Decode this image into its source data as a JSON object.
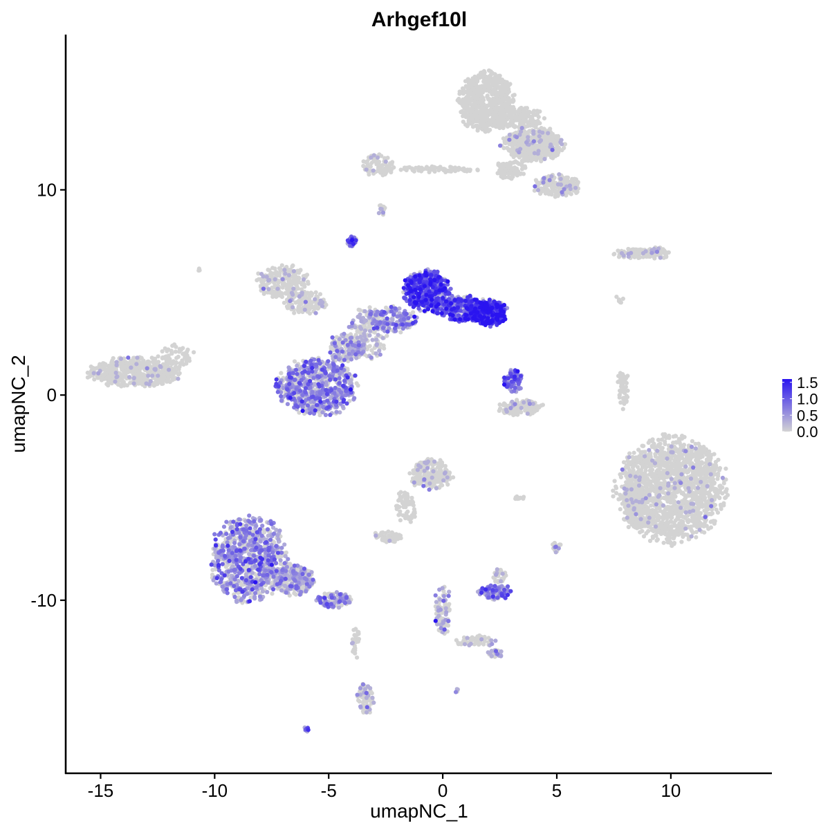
{
  "chart_data": {
    "type": "scatter",
    "title": "Arhgef10l",
    "xlabel": "umapNC_1",
    "ylabel": "umapNC_2",
    "xlim": [
      -16.5,
      14.4
    ],
    "ylim": [
      -18.4,
      17.5
    ],
    "x_ticks": [
      -15,
      -10,
      -5,
      0,
      5,
      10
    ],
    "y_ticks": [
      10,
      0,
      -10
    ],
    "x_tick_labels": [
      "-15",
      "-10",
      "-5",
      "0",
      "5",
      "10"
    ],
    "y_tick_labels": [
      "10",
      "0",
      "-10"
    ],
    "grid": false,
    "legend": {
      "placement": "right",
      "type": "colorbar",
      "min": 0.0,
      "max": 1.6,
      "ticks": [
        0.0,
        0.5,
        1.0,
        1.5
      ],
      "tick_labels": [
        "0.0",
        "0.5",
        "1.0",
        "1.5"
      ],
      "low_color": "#d3d3d3",
      "high_color": "#2a14f0"
    },
    "clusters": [
      {
        "x": -13.5,
        "y": 1.1,
        "rx": 2.2,
        "ry": 0.8,
        "n": 500,
        "expr": 0.03
      },
      {
        "x": -11.7,
        "y": 1.9,
        "rx": 0.9,
        "ry": 0.6,
        "n": 60,
        "expr": 0.0
      },
      {
        "x": -7.0,
        "y": 5.5,
        "rx": 1.3,
        "ry": 0.9,
        "n": 220,
        "expr": 0.05
      },
      {
        "x": -6.0,
        "y": 4.5,
        "rx": 1.0,
        "ry": 0.6,
        "n": 120,
        "expr": 0.1
      },
      {
        "x": -4.0,
        "y": 7.5,
        "rx": 0.25,
        "ry": 0.3,
        "n": 30,
        "expr": 0.8
      },
      {
        "x": -3.3,
        "y": 3.0,
        "rx": 0.9,
        "ry": 1.4,
        "n": 180,
        "expr": 0.3
      },
      {
        "x": -2.2,
        "y": 3.7,
        "rx": 1.2,
        "ry": 0.7,
        "n": 160,
        "expr": 0.55
      },
      {
        "x": -5.5,
        "y": 0.4,
        "rx": 1.9,
        "ry": 1.5,
        "n": 650,
        "expr": 0.6
      },
      {
        "x": -4.3,
        "y": 2.3,
        "rx": 0.8,
        "ry": 0.8,
        "n": 150,
        "expr": 0.4
      },
      {
        "x": -0.7,
        "y": 5.1,
        "rx": 1.1,
        "ry": 1.1,
        "n": 450,
        "expr": 1.1
      },
      {
        "x": 0.8,
        "y": 4.2,
        "rx": 1.4,
        "ry": 0.7,
        "n": 300,
        "expr": 1.05
      },
      {
        "x": 2.0,
        "y": 4.0,
        "rx": 0.9,
        "ry": 0.7,
        "n": 280,
        "expr": 1.3
      },
      {
        "x": 3.1,
        "y": 0.7,
        "rx": 0.5,
        "ry": 0.6,
        "n": 90,
        "expr": 0.8
      },
      {
        "x": 3.4,
        "y": -0.6,
        "rx": 1.1,
        "ry": 0.4,
        "n": 150,
        "expr": 0.05
      },
      {
        "x": -2.8,
        "y": 11.2,
        "rx": 0.8,
        "ry": 0.6,
        "n": 80,
        "expr": 0.05
      },
      {
        "x": -0.2,
        "y": 11.0,
        "rx": 2.0,
        "ry": 0.15,
        "n": 80,
        "expr": 0.0
      },
      {
        "x": 1.9,
        "y": 14.3,
        "rx": 1.3,
        "ry": 1.6,
        "n": 650,
        "expr": 0.0
      },
      {
        "x": 4.0,
        "y": 12.2,
        "rx": 1.5,
        "ry": 0.9,
        "n": 450,
        "expr": 0.02
      },
      {
        "x": 3.2,
        "y": 13.5,
        "rx": 1.3,
        "ry": 0.6,
        "n": 200,
        "expr": 0.0
      },
      {
        "x": 5.0,
        "y": 10.2,
        "rx": 1.1,
        "ry": 0.6,
        "n": 200,
        "expr": 0.06
      },
      {
        "x": 3.0,
        "y": 11.0,
        "rx": 0.7,
        "ry": 0.5,
        "n": 90,
        "expr": 0.0
      },
      {
        "x": -2.7,
        "y": 9.0,
        "rx": 0.2,
        "ry": 0.3,
        "n": 15,
        "expr": 0.2
      },
      {
        "x": 8.5,
        "y": 6.9,
        "rx": 1.1,
        "ry": 0.25,
        "n": 90,
        "expr": 0.05
      },
      {
        "x": 9.4,
        "y": 6.9,
        "rx": 0.6,
        "ry": 0.3,
        "n": 70,
        "expr": 0.05
      },
      {
        "x": 7.9,
        "y": 0.3,
        "rx": 0.3,
        "ry": 1.1,
        "n": 50,
        "expr": 0.0
      },
      {
        "x": 10.0,
        "y": -4.6,
        "rx": 2.6,
        "ry": 2.8,
        "n": 1500,
        "expr": 0.01
      },
      {
        "x": 8.4,
        "y": -5.3,
        "rx": 0.5,
        "ry": 1.3,
        "n": 160,
        "expr": 0.01
      },
      {
        "x": -0.5,
        "y": -3.9,
        "rx": 1.0,
        "ry": 0.8,
        "n": 220,
        "expr": 0.05
      },
      {
        "x": -1.6,
        "y": -5.4,
        "rx": 0.5,
        "ry": 0.9,
        "n": 60,
        "expr": 0.0
      },
      {
        "x": -2.4,
        "y": -6.9,
        "rx": 0.7,
        "ry": 0.3,
        "n": 60,
        "expr": 0.05
      },
      {
        "x": -8.5,
        "y": -8.0,
        "rx": 1.8,
        "ry": 2.3,
        "n": 800,
        "expr": 0.55
      },
      {
        "x": -6.5,
        "y": -9.0,
        "rx": 1.0,
        "ry": 0.8,
        "n": 280,
        "expr": 0.4
      },
      {
        "x": -4.7,
        "y": -10.0,
        "rx": 0.9,
        "ry": 0.4,
        "n": 120,
        "expr": 0.5
      },
      {
        "x": -3.4,
        "y": -14.8,
        "rx": 0.4,
        "ry": 0.9,
        "n": 80,
        "expr": 0.2
      },
      {
        "x": -3.8,
        "y": -12.2,
        "rx": 0.2,
        "ry": 1.0,
        "n": 25,
        "expr": 0.05
      },
      {
        "x": 2.3,
        "y": -9.6,
        "rx": 0.8,
        "ry": 0.4,
        "n": 140,
        "expr": 0.6
      },
      {
        "x": 2.5,
        "y": -8.8,
        "rx": 0.3,
        "ry": 0.4,
        "n": 35,
        "expr": 0.1
      },
      {
        "x": 5.0,
        "y": -7.4,
        "rx": 0.2,
        "ry": 0.3,
        "n": 25,
        "expr": 0.1
      },
      {
        "x": 3.3,
        "y": -5.0,
        "rx": 0.4,
        "ry": 0.1,
        "n": 15,
        "expr": 0.0
      },
      {
        "x": 0.0,
        "y": -10.5,
        "rx": 0.4,
        "ry": 1.4,
        "n": 90,
        "expr": 0.3
      },
      {
        "x": 1.5,
        "y": -12.0,
        "rx": 1.0,
        "ry": 0.3,
        "n": 60,
        "expr": 0.1
      },
      {
        "x": 2.3,
        "y": -12.6,
        "rx": 0.4,
        "ry": 0.2,
        "n": 30,
        "expr": 0.4
      },
      {
        "x": -6.0,
        "y": -16.3,
        "rx": 0.15,
        "ry": 0.15,
        "n": 6,
        "expr": 0.7
      },
      {
        "x": 0.6,
        "y": -14.4,
        "rx": 0.1,
        "ry": 0.1,
        "n": 4,
        "expr": 0.6
      },
      {
        "x": -10.7,
        "y": 6.1,
        "rx": 0.1,
        "ry": 0.1,
        "n": 3,
        "expr": 0.0
      },
      {
        "x": 7.7,
        "y": 4.7,
        "rx": 0.3,
        "ry": 0.3,
        "n": 8,
        "expr": 0.0
      }
    ]
  }
}
